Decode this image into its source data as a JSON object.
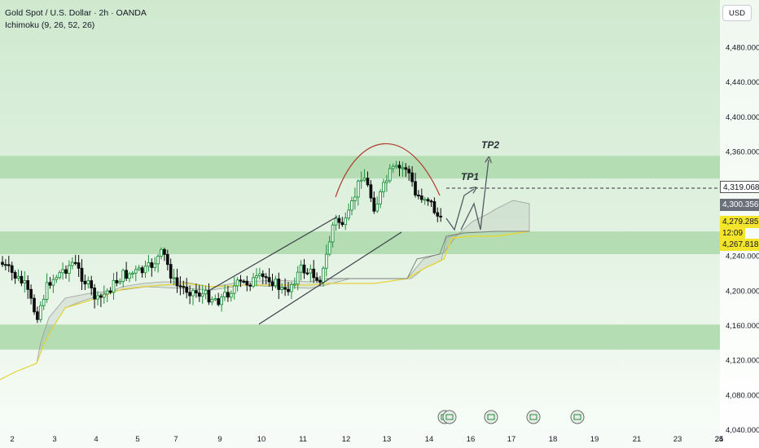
{
  "legend": {
    "symbol": "Gold Spot / U.S. Dollar · 2h · OANDA",
    "indicator": "Ichimoku (9, 26, 52, 26)"
  },
  "currency_button": "USD",
  "colors": {
    "zone": "#b4ddb4",
    "band": "#e4f4e4",
    "bull": "#1f8f3a",
    "bear": "#0d0d0d",
    "tenkan": "#e6d43a",
    "badge_gray": "#6b6f78",
    "badge_yellow": "#f3e52b"
  },
  "badges": {
    "resistance": "4,319.068",
    "cloud": "4,300.356",
    "price": "4,279.285",
    "countdown": "12:09",
    "support": "4,267.818"
  },
  "annotations": {
    "tp1": "TP1",
    "tp2": "TP2"
  },
  "chart_data": {
    "type": "candlestick",
    "y_ticks": [
      "4,480.000",
      "4,440.000",
      "4,400.000",
      "4,360.000",
      "4,320.000",
      "4,280.000",
      "4,240.000",
      "4,200.000",
      "4,160.000",
      "4,120.000",
      "4,080.000",
      "4,040.000"
    ],
    "y_tick_values": [
      4480,
      4440,
      4400,
      4360,
      4320,
      4280,
      4240,
      4200,
      4160,
      4120,
      4080,
      4040
    ],
    "x_ticks": [
      "2",
      "3",
      "4",
      "5",
      "7",
      "9",
      "10",
      "11",
      "12",
      "13",
      "14",
      "16",
      "17",
      "18",
      "19",
      "21",
      "23",
      "24",
      "25"
    ],
    "zones": [
      {
        "from": 4329,
        "to": 4355
      },
      {
        "from": 4242,
        "to": 4268
      },
      {
        "from": 4132,
        "to": 4161
      }
    ],
    "levels": {
      "resistance": 4319.068,
      "cloud": 4300.356,
      "price": 4279.285,
      "support": 4267.818
    },
    "targets": [
      "TP1",
      "TP2"
    ]
  }
}
